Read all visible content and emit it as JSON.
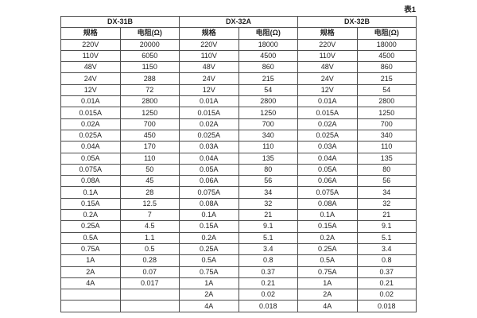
{
  "caption": "表1",
  "table": {
    "headers": {
      "spec": "规格",
      "resistance": "电阻(Ω)"
    },
    "groups": [
      {
        "name": "DX-31B",
        "rows": [
          [
            "220V",
            "20000"
          ],
          [
            "110V",
            "6050"
          ],
          [
            "48V",
            "1150"
          ],
          [
            "24V",
            "288"
          ],
          [
            "12V",
            "72"
          ],
          [
            "0.01A",
            "2800"
          ],
          [
            "0.015A",
            "1250"
          ],
          [
            "0.02A",
            "700"
          ],
          [
            "0.025A",
            "450"
          ],
          [
            "0.04A",
            "170"
          ],
          [
            "0.05A",
            "110"
          ],
          [
            "0.075A",
            "50"
          ],
          [
            "0.08A",
            "45"
          ],
          [
            "0.1A",
            "28"
          ],
          [
            "0.15A",
            "12.5"
          ],
          [
            "0.2A",
            "7"
          ],
          [
            "0.25A",
            "4.5"
          ],
          [
            "0.5A",
            "1.1"
          ],
          [
            "0.75A",
            "0.5"
          ],
          [
            "1A",
            "0.28"
          ],
          [
            "2A",
            "0.07"
          ],
          [
            "4A",
            "0.017"
          ],
          [
            "",
            ""
          ],
          [
            "",
            ""
          ]
        ]
      },
      {
        "name": "DX-32A",
        "rows": [
          [
            "220V",
            "18000"
          ],
          [
            "110V",
            "4500"
          ],
          [
            "48V",
            "860"
          ],
          [
            "24V",
            "215"
          ],
          [
            "12V",
            "54"
          ],
          [
            "0.01A",
            "2800"
          ],
          [
            "0.015A",
            "1250"
          ],
          [
            "0.02A",
            "700"
          ],
          [
            "0.025A",
            "340"
          ],
          [
            "0.03A",
            "110"
          ],
          [
            "0.04A",
            "135"
          ],
          [
            "0.05A",
            "80"
          ],
          [
            "0.06A",
            "56"
          ],
          [
            "0.075A",
            "34"
          ],
          [
            "0.08A",
            "32"
          ],
          [
            "0.1A",
            "21"
          ],
          [
            "0.15A",
            "9.1"
          ],
          [
            "0.2A",
            "5.1"
          ],
          [
            "0.25A",
            "3.4"
          ],
          [
            "0.5A",
            "0.8"
          ],
          [
            "0.75A",
            "0.37"
          ],
          [
            "1A",
            "0.21"
          ],
          [
            "2A",
            "0.02"
          ],
          [
            "4A",
            "0.018"
          ]
        ]
      },
      {
        "name": "DX-32B",
        "rows": [
          [
            "220V",
            "18000"
          ],
          [
            "110V",
            "4500"
          ],
          [
            "48V",
            "860"
          ],
          [
            "24V",
            "215"
          ],
          [
            "12V",
            "54"
          ],
          [
            "0.01A",
            "2800"
          ],
          [
            "0.015A",
            "1250"
          ],
          [
            "0.02A",
            "700"
          ],
          [
            "0.025A",
            "340"
          ],
          [
            "0.03A",
            "110"
          ],
          [
            "0.04A",
            "135"
          ],
          [
            "0.05A",
            "80"
          ],
          [
            "0.06A",
            "56"
          ],
          [
            "0.075A",
            "34"
          ],
          [
            "0.08A",
            "32"
          ],
          [
            "0.1A",
            "21"
          ],
          [
            "0.15A",
            "9.1"
          ],
          [
            "0.2A",
            "5.1"
          ],
          [
            "0.25A",
            "3.4"
          ],
          [
            "0.5A",
            "0.8"
          ],
          [
            "0.75A",
            "0.37"
          ],
          [
            "1A",
            "0.21"
          ],
          [
            "2A",
            "0.02"
          ],
          [
            "4A",
            "0.018"
          ]
        ]
      }
    ]
  },
  "colors": {
    "border": "#4f4f4f",
    "text": "#1f1f1f",
    "background": "#ffffff"
  }
}
